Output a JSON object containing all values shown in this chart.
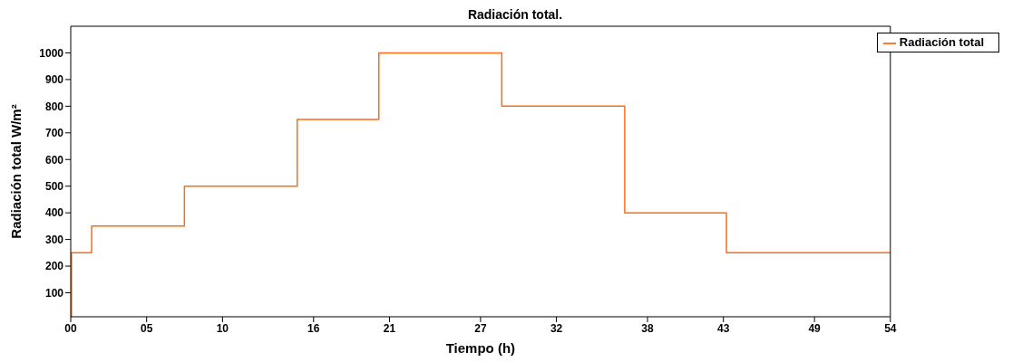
{
  "chart_data": {
    "type": "step",
    "title": "Radiación total.",
    "xlabel": "Tiempo (h)",
    "ylabel": "Radiación total W/m²",
    "x": [
      0,
      0.05,
      1.38,
      7.49,
      14.92,
      20.3,
      28.4,
      36.5,
      43.2,
      54
    ],
    "series": [
      {
        "name": "Radiación total",
        "color": "#ff6a13",
        "values": [
          10,
          250,
          350,
          500,
          750,
          1000,
          800,
          400,
          250,
          250
        ]
      }
    ],
    "xlim": [
      0,
      54
    ],
    "xticks": [
      {
        "value": 0,
        "label": "00"
      },
      {
        "value": 5,
        "label": "05"
      },
      10,
      16,
      21,
      27,
      32,
      38,
      43,
      49,
      54
    ],
    "ylim": [
      10,
      1100
    ],
    "yticks": [
      100,
      200,
      300,
      400,
      500,
      600,
      700,
      800,
      900,
      1000
    ],
    "legend": "top right"
  }
}
